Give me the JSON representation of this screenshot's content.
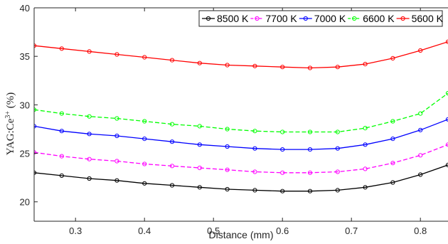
{
  "chart_data": {
    "type": "line",
    "xlabel": "Distance (mm)",
    "ylabel": "YAG:Ce",
    "ylabel_sup": "3+",
    "ylabel_unit": " (%)",
    "xlim": [
      0.24,
      0.84
    ],
    "ylim": [
      18,
      40
    ],
    "xticks": [
      0.3,
      0.4,
      0.5,
      0.6,
      0.7,
      0.8
    ],
    "xtick_labels": [
      "0.3",
      "0.4",
      "0.5",
      "0.6",
      "0.7",
      "0.8"
    ],
    "yticks": [
      20,
      25,
      30,
      35,
      40
    ],
    "ytick_labels": [
      "20",
      "25",
      "30",
      "35",
      "40"
    ],
    "grid": false,
    "legend_position": "top-right",
    "x": [
      0.24,
      0.28,
      0.32,
      0.36,
      0.4,
      0.44,
      0.48,
      0.52,
      0.56,
      0.6,
      0.64,
      0.68,
      0.72,
      0.76,
      0.8,
      0.84
    ],
    "series": [
      {
        "name": "8500 K",
        "color": "#000000",
        "dash": "solid",
        "values": [
          23.0,
          22.7,
          22.4,
          22.2,
          21.9,
          21.7,
          21.5,
          21.3,
          21.2,
          21.1,
          21.1,
          21.2,
          21.5,
          22.0,
          22.8,
          23.8
        ]
      },
      {
        "name": "7700 K",
        "color": "#ff00ff",
        "dash": "dashed",
        "values": [
          25.1,
          24.7,
          24.4,
          24.2,
          23.9,
          23.7,
          23.5,
          23.3,
          23.1,
          23.0,
          23.0,
          23.1,
          23.4,
          24.0,
          24.8,
          25.9
        ]
      },
      {
        "name": "7000 K",
        "color": "#0000ff",
        "dash": "solid",
        "values": [
          27.8,
          27.3,
          27.0,
          26.8,
          26.5,
          26.2,
          25.9,
          25.7,
          25.5,
          25.4,
          25.4,
          25.5,
          25.9,
          26.5,
          27.4,
          28.5
        ]
      },
      {
        "name": "6600 K",
        "color": "#00ff00",
        "dash": "dashed",
        "values": [
          29.5,
          29.1,
          28.8,
          28.6,
          28.3,
          28.0,
          27.8,
          27.5,
          27.3,
          27.2,
          27.2,
          27.2,
          27.6,
          28.3,
          29.1,
          31.2
        ]
      },
      {
        "name": "5600 K",
        "color": "#ff0000",
        "dash": "solid",
        "values": [
          36.1,
          35.8,
          35.5,
          35.2,
          34.9,
          34.6,
          34.3,
          34.1,
          34.0,
          33.9,
          33.8,
          33.9,
          34.2,
          34.8,
          35.6,
          36.5
        ]
      }
    ]
  }
}
